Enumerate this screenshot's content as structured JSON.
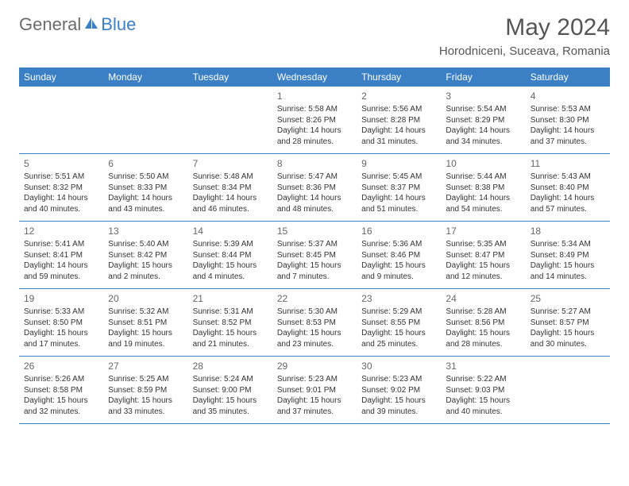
{
  "brand": {
    "part1": "General",
    "part2": "Blue"
  },
  "title": "May 2024",
  "location": "Horodniceni, Suceava, Romania",
  "colors": {
    "header_bg": "#3b7fc4",
    "text": "#333333",
    "muted": "#666666",
    "brand_gray": "#6b6b6b",
    "brand_blue": "#3b7fc4",
    "border": "#3b7fc4",
    "background": "#ffffff"
  },
  "typography": {
    "title_fontsize": 30,
    "location_fontsize": 15,
    "weekday_fontsize": 12,
    "daynum_fontsize": 12,
    "body_fontsize": 10
  },
  "weekdays": [
    "Sunday",
    "Monday",
    "Tuesday",
    "Wednesday",
    "Thursday",
    "Friday",
    "Saturday"
  ],
  "weeks": [
    [
      null,
      null,
      null,
      {
        "n": "1",
        "sr": "5:58 AM",
        "ss": "8:26 PM",
        "dl1": "14 hours",
        "dl2": "and 28 minutes."
      },
      {
        "n": "2",
        "sr": "5:56 AM",
        "ss": "8:28 PM",
        "dl1": "14 hours",
        "dl2": "and 31 minutes."
      },
      {
        "n": "3",
        "sr": "5:54 AM",
        "ss": "8:29 PM",
        "dl1": "14 hours",
        "dl2": "and 34 minutes."
      },
      {
        "n": "4",
        "sr": "5:53 AM",
        "ss": "8:30 PM",
        "dl1": "14 hours",
        "dl2": "and 37 minutes."
      }
    ],
    [
      {
        "n": "5",
        "sr": "5:51 AM",
        "ss": "8:32 PM",
        "dl1": "14 hours",
        "dl2": "and 40 minutes."
      },
      {
        "n": "6",
        "sr": "5:50 AM",
        "ss": "8:33 PM",
        "dl1": "14 hours",
        "dl2": "and 43 minutes."
      },
      {
        "n": "7",
        "sr": "5:48 AM",
        "ss": "8:34 PM",
        "dl1": "14 hours",
        "dl2": "and 46 minutes."
      },
      {
        "n": "8",
        "sr": "5:47 AM",
        "ss": "8:36 PM",
        "dl1": "14 hours",
        "dl2": "and 48 minutes."
      },
      {
        "n": "9",
        "sr": "5:45 AM",
        "ss": "8:37 PM",
        "dl1": "14 hours",
        "dl2": "and 51 minutes."
      },
      {
        "n": "10",
        "sr": "5:44 AM",
        "ss": "8:38 PM",
        "dl1": "14 hours",
        "dl2": "and 54 minutes."
      },
      {
        "n": "11",
        "sr": "5:43 AM",
        "ss": "8:40 PM",
        "dl1": "14 hours",
        "dl2": "and 57 minutes."
      }
    ],
    [
      {
        "n": "12",
        "sr": "5:41 AM",
        "ss": "8:41 PM",
        "dl1": "14 hours",
        "dl2": "and 59 minutes."
      },
      {
        "n": "13",
        "sr": "5:40 AM",
        "ss": "8:42 PM",
        "dl1": "15 hours",
        "dl2": "and 2 minutes."
      },
      {
        "n": "14",
        "sr": "5:39 AM",
        "ss": "8:44 PM",
        "dl1": "15 hours",
        "dl2": "and 4 minutes."
      },
      {
        "n": "15",
        "sr": "5:37 AM",
        "ss": "8:45 PM",
        "dl1": "15 hours",
        "dl2": "and 7 minutes."
      },
      {
        "n": "16",
        "sr": "5:36 AM",
        "ss": "8:46 PM",
        "dl1": "15 hours",
        "dl2": "and 9 minutes."
      },
      {
        "n": "17",
        "sr": "5:35 AM",
        "ss": "8:47 PM",
        "dl1": "15 hours",
        "dl2": "and 12 minutes."
      },
      {
        "n": "18",
        "sr": "5:34 AM",
        "ss": "8:49 PM",
        "dl1": "15 hours",
        "dl2": "and 14 minutes."
      }
    ],
    [
      {
        "n": "19",
        "sr": "5:33 AM",
        "ss": "8:50 PM",
        "dl1": "15 hours",
        "dl2": "and 17 minutes."
      },
      {
        "n": "20",
        "sr": "5:32 AM",
        "ss": "8:51 PM",
        "dl1": "15 hours",
        "dl2": "and 19 minutes."
      },
      {
        "n": "21",
        "sr": "5:31 AM",
        "ss": "8:52 PM",
        "dl1": "15 hours",
        "dl2": "and 21 minutes."
      },
      {
        "n": "22",
        "sr": "5:30 AM",
        "ss": "8:53 PM",
        "dl1": "15 hours",
        "dl2": "and 23 minutes."
      },
      {
        "n": "23",
        "sr": "5:29 AM",
        "ss": "8:55 PM",
        "dl1": "15 hours",
        "dl2": "and 25 minutes."
      },
      {
        "n": "24",
        "sr": "5:28 AM",
        "ss": "8:56 PM",
        "dl1": "15 hours",
        "dl2": "and 28 minutes."
      },
      {
        "n": "25",
        "sr": "5:27 AM",
        "ss": "8:57 PM",
        "dl1": "15 hours",
        "dl2": "and 30 minutes."
      }
    ],
    [
      {
        "n": "26",
        "sr": "5:26 AM",
        "ss": "8:58 PM",
        "dl1": "15 hours",
        "dl2": "and 32 minutes."
      },
      {
        "n": "27",
        "sr": "5:25 AM",
        "ss": "8:59 PM",
        "dl1": "15 hours",
        "dl2": "and 33 minutes."
      },
      {
        "n": "28",
        "sr": "5:24 AM",
        "ss": "9:00 PM",
        "dl1": "15 hours",
        "dl2": "and 35 minutes."
      },
      {
        "n": "29",
        "sr": "5:23 AM",
        "ss": "9:01 PM",
        "dl1": "15 hours",
        "dl2": "and 37 minutes."
      },
      {
        "n": "30",
        "sr": "5:23 AM",
        "ss": "9:02 PM",
        "dl1": "15 hours",
        "dl2": "and 39 minutes."
      },
      {
        "n": "31",
        "sr": "5:22 AM",
        "ss": "9:03 PM",
        "dl1": "15 hours",
        "dl2": "and 40 minutes."
      },
      null
    ]
  ],
  "labels": {
    "sunrise_prefix": "Sunrise: ",
    "sunset_prefix": "Sunset: ",
    "daylight_prefix": "Daylight: "
  }
}
